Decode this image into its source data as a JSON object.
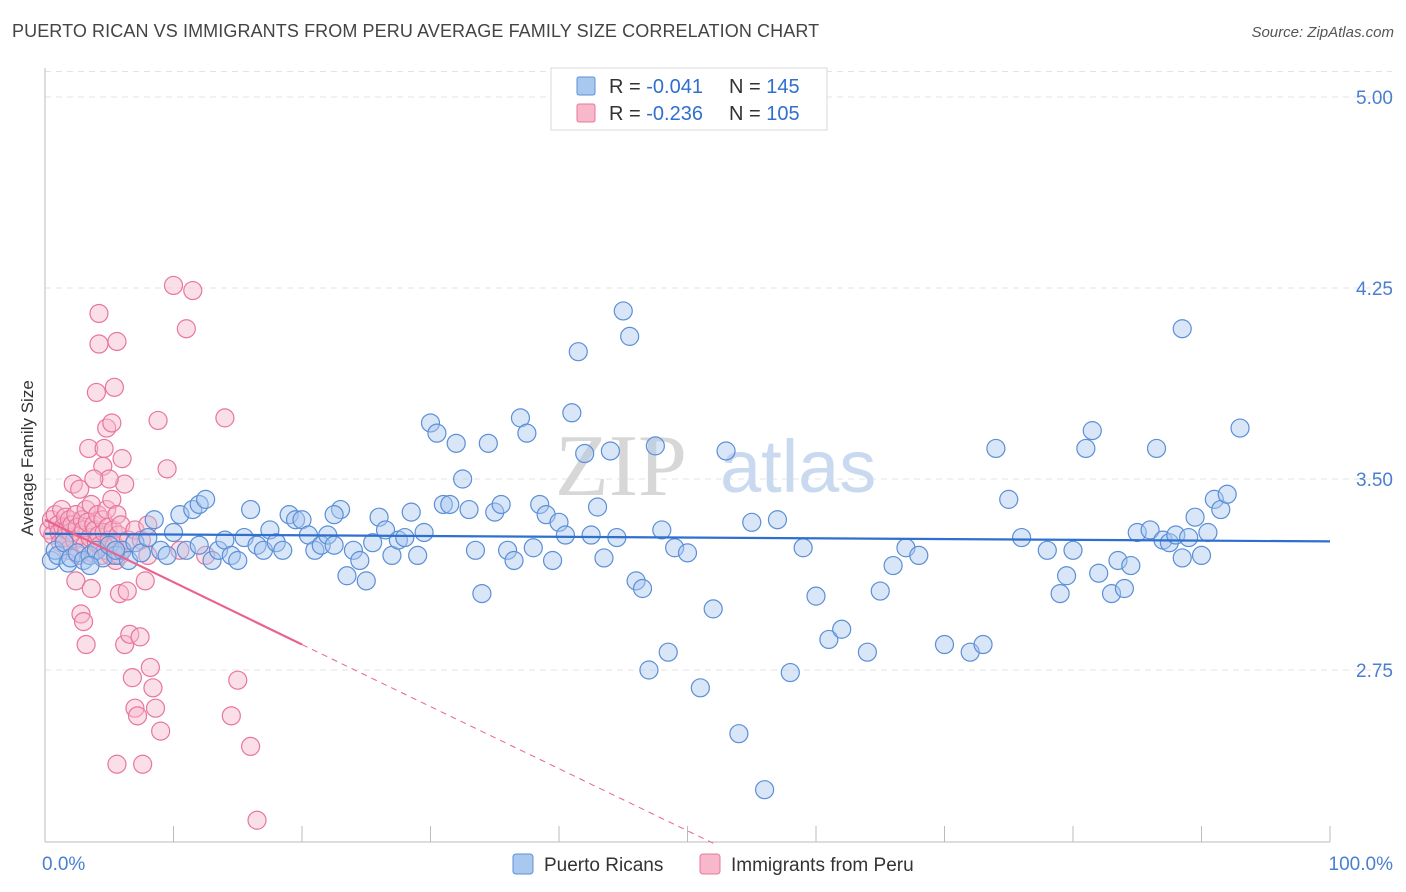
{
  "title": "PUERTO RICAN VS IMMIGRANTS FROM PERU AVERAGE FAMILY SIZE CORRELATION CHART",
  "source": "Source: ZipAtlas.com",
  "watermark": {
    "zip": "ZIP",
    "atlas": "atlas"
  },
  "colors": {
    "blue_fill": "#a9c8f0",
    "blue_stroke": "#5b8fd6",
    "blue_line": "#2f6fcf",
    "pink_fill": "#f7b8cb",
    "pink_stroke": "#e8769c",
    "pink_line": "#e8638f",
    "tick": "#4a7fd0",
    "grid": "#e3e3e3"
  },
  "legend_box": {
    "rows": [
      {
        "r_label": "R = ",
        "r_value": "-0.041",
        "n_label": "N = ",
        "n_value": "145"
      },
      {
        "r_label": "R = ",
        "r_value": "-0.236",
        "n_label": "N = ",
        "n_value": "105"
      }
    ]
  },
  "chart_data": {
    "type": "scatter",
    "title": "PUERTO RICAN VS IMMIGRANTS FROM PERU AVERAGE FAMILY SIZE CORRELATION CHART",
    "xlabel": "",
    "ylabel": "Average Family Size",
    "xlim": [
      0,
      100
    ],
    "ylim": [
      2.0,
      5.1
    ],
    "x_tick_labels": [
      "0.0%",
      "100.0%"
    ],
    "y_ticks": [
      2.75,
      3.5,
      4.25,
      5.0
    ],
    "y_tick_labels": [
      "2.75",
      "3.50",
      "4.25",
      "5.00"
    ],
    "grid": true,
    "legend_position": "bottom-center",
    "series": [
      {
        "name": "Puerto Ricans",
        "r": -0.041,
        "n": 145,
        "trend": {
          "x": [
            0,
            100
          ],
          "y": [
            3.285,
            3.255
          ]
        },
        "points": [
          [
            0.5,
            3.18
          ],
          [
            0.8,
            3.22
          ],
          [
            1.0,
            3.2
          ],
          [
            1.5,
            3.25
          ],
          [
            1.8,
            3.17
          ],
          [
            2.0,
            3.19
          ],
          [
            2.5,
            3.21
          ],
          [
            3.0,
            3.18
          ],
          [
            3.5,
            3.2
          ],
          [
            4.0,
            3.22
          ],
          [
            4.5,
            3.19
          ],
          [
            5.0,
            3.24
          ],
          [
            5.5,
            3.2
          ],
          [
            6.0,
            3.22
          ],
          [
            6.5,
            3.18
          ],
          [
            7.0,
            3.25
          ],
          [
            7.5,
            3.21
          ],
          [
            8.0,
            3.27
          ],
          [
            8.5,
            3.34
          ],
          [
            9.0,
            3.22
          ],
          [
            9.5,
            3.2
          ],
          [
            10.0,
            3.29
          ],
          [
            10.5,
            3.36
          ],
          [
            11.0,
            3.22
          ],
          [
            11.5,
            3.38
          ],
          [
            12.0,
            3.4
          ],
          [
            12.5,
            3.42
          ],
          [
            13.0,
            3.18
          ],
          [
            13.5,
            3.22
          ],
          [
            14.0,
            3.26
          ],
          [
            14.5,
            3.2
          ],
          [
            15.0,
            3.18
          ],
          [
            15.5,
            3.27
          ],
          [
            16.0,
            3.38
          ],
          [
            16.5,
            3.24
          ],
          [
            17.0,
            3.22
          ],
          [
            17.5,
            3.3
          ],
          [
            18.0,
            3.25
          ],
          [
            18.5,
            3.22
          ],
          [
            19.0,
            3.36
          ],
          [
            19.5,
            3.34
          ],
          [
            20.0,
            3.34
          ],
          [
            20.5,
            3.28
          ],
          [
            21.0,
            3.22
          ],
          [
            21.5,
            3.24
          ],
          [
            22.0,
            3.28
          ],
          [
            22.5,
            3.24
          ],
          [
            23.0,
            3.38
          ],
          [
            23.5,
            3.12
          ],
          [
            24.0,
            3.22
          ],
          [
            24.5,
            3.18
          ],
          [
            25.0,
            3.1
          ],
          [
            25.5,
            3.25
          ],
          [
            26.0,
            3.35
          ],
          [
            26.5,
            3.3
          ],
          [
            27.0,
            3.2
          ],
          [
            27.5,
            3.26
          ],
          [
            28.0,
            3.27
          ],
          [
            28.5,
            3.37
          ],
          [
            29.0,
            3.2
          ],
          [
            29.5,
            3.29
          ],
          [
            30.0,
            3.72
          ],
          [
            30.5,
            3.68
          ],
          [
            31.0,
            3.4
          ],
          [
            31.5,
            3.4
          ],
          [
            32.0,
            3.64
          ],
          [
            32.5,
            3.5
          ],
          [
            33.0,
            3.38
          ],
          [
            33.5,
            3.22
          ],
          [
            34.0,
            3.05
          ],
          [
            34.5,
            3.64
          ],
          [
            35.0,
            3.37
          ],
          [
            35.5,
            3.4
          ],
          [
            36.0,
            3.22
          ],
          [
            36.5,
            3.18
          ],
          [
            37.0,
            3.74
          ],
          [
            37.5,
            3.68
          ],
          [
            38.0,
            3.23
          ],
          [
            38.5,
            3.4
          ],
          [
            39.0,
            3.36
          ],
          [
            39.5,
            3.18
          ],
          [
            40.0,
            3.33
          ],
          [
            40.5,
            3.28
          ],
          [
            41.0,
            3.76
          ],
          [
            41.5,
            4.0
          ],
          [
            42.0,
            3.6
          ],
          [
            42.5,
            3.28
          ],
          [
            43.0,
            3.39
          ],
          [
            43.5,
            3.19
          ],
          [
            44.0,
            3.61
          ],
          [
            44.5,
            3.27
          ],
          [
            45.0,
            4.16
          ],
          [
            45.5,
            4.06
          ],
          [
            46.0,
            3.1
          ],
          [
            46.5,
            3.07
          ],
          [
            47.0,
            2.75
          ],
          [
            47.5,
            3.63
          ],
          [
            48.0,
            3.3
          ],
          [
            48.5,
            2.82
          ],
          [
            49.0,
            3.23
          ],
          [
            50.0,
            3.21
          ],
          [
            51.0,
            2.68
          ],
          [
            52.0,
            2.99
          ],
          [
            53.0,
            3.61
          ],
          [
            54.0,
            2.5
          ],
          [
            55.0,
            3.33
          ],
          [
            56.0,
            2.28
          ],
          [
            57.0,
            3.34
          ],
          [
            58.0,
            2.74
          ],
          [
            59.0,
            3.23
          ],
          [
            60.0,
            3.04
          ],
          [
            61.0,
            2.87
          ],
          [
            62.0,
            2.91
          ],
          [
            64.0,
            2.82
          ],
          [
            65.0,
            3.06
          ],
          [
            66.0,
            3.16
          ],
          [
            67.0,
            3.23
          ],
          [
            68.0,
            3.2
          ],
          [
            70.0,
            2.85
          ],
          [
            72.0,
            2.82
          ],
          [
            73.0,
            2.85
          ],
          [
            74.0,
            3.62
          ],
          [
            75.0,
            3.42
          ],
          [
            76.0,
            3.27
          ],
          [
            78.0,
            3.22
          ],
          [
            79.0,
            3.05
          ],
          [
            79.5,
            3.12
          ],
          [
            80.0,
            3.22
          ],
          [
            81.0,
            3.62
          ],
          [
            81.5,
            3.69
          ],
          [
            82.0,
            3.13
          ],
          [
            83.0,
            3.05
          ],
          [
            83.5,
            3.18
          ],
          [
            84.0,
            3.07
          ],
          [
            84.5,
            3.16
          ],
          [
            85.0,
            3.29
          ],
          [
            86.0,
            3.3
          ],
          [
            86.5,
            3.62
          ],
          [
            87.0,
            3.26
          ],
          [
            87.5,
            3.25
          ],
          [
            88.0,
            3.28
          ],
          [
            88.5,
            3.19
          ],
          [
            89.0,
            3.27
          ],
          [
            89.5,
            3.35
          ],
          [
            90.0,
            3.2
          ],
          [
            90.5,
            3.29
          ],
          [
            91.0,
            3.42
          ],
          [
            91.5,
            3.38
          ],
          [
            92.0,
            3.44
          ],
          [
            93.0,
            3.7
          ],
          [
            3.5,
            3.16
          ],
          [
            5.5,
            3.22
          ],
          [
            12.0,
            3.24
          ],
          [
            22.5,
            3.36
          ],
          [
            88.5,
            4.09
          ]
        ]
      },
      {
        "name": "Immigrants from Peru",
        "r": -0.236,
        "n": 105,
        "trend": {
          "x": [
            0,
            20
          ],
          "y": [
            3.34,
            2.85
          ]
        },
        "trend_dashed": {
          "x": [
            20,
            52
          ],
          "y": [
            2.85,
            2.07
          ]
        },
        "points": [
          [
            0.3,
            3.3
          ],
          [
            0.5,
            3.34
          ],
          [
            0.6,
            3.28
          ],
          [
            0.8,
            3.36
          ],
          [
            1.0,
            3.32
          ],
          [
            1.1,
            3.29
          ],
          [
            1.2,
            3.25
          ],
          [
            1.3,
            3.38
          ],
          [
            1.4,
            3.31
          ],
          [
            1.5,
            3.27
          ],
          [
            1.6,
            3.35
          ],
          [
            1.7,
            3.3
          ],
          [
            1.8,
            3.22
          ],
          [
            1.9,
            3.34
          ],
          [
            2.0,
            3.29
          ],
          [
            2.1,
            3.32
          ],
          [
            2.2,
            3.48
          ],
          [
            2.3,
            3.26
          ],
          [
            2.4,
            3.36
          ],
          [
            2.5,
            3.31
          ],
          [
            2.6,
            3.2
          ],
          [
            2.7,
            3.46
          ],
          [
            2.8,
            3.28
          ],
          [
            2.9,
            3.34
          ],
          [
            3.0,
            3.3
          ],
          [
            3.1,
            3.24
          ],
          [
            3.2,
            3.38
          ],
          [
            3.3,
            3.33
          ],
          [
            3.4,
            3.62
          ],
          [
            3.5,
            3.27
          ],
          [
            3.6,
            3.4
          ],
          [
            3.7,
            3.21
          ],
          [
            3.8,
            3.32
          ],
          [
            3.9,
            3.3
          ],
          [
            4.0,
            3.25
          ],
          [
            4.1,
            3.36
          ],
          [
            4.2,
            3.28
          ],
          [
            4.3,
            3.24
          ],
          [
            4.4,
            3.2
          ],
          [
            4.5,
            3.34
          ],
          [
            4.6,
            3.29
          ],
          [
            4.7,
            3.22
          ],
          [
            4.8,
            3.38
          ],
          [
            4.9,
            3.31
          ],
          [
            5.0,
            3.26
          ],
          [
            5.1,
            3.2
          ],
          [
            5.2,
            3.42
          ],
          [
            5.3,
            3.3
          ],
          [
            5.4,
            3.24
          ],
          [
            5.5,
            3.18
          ],
          [
            5.6,
            3.36
          ],
          [
            5.7,
            3.28
          ],
          [
            5.8,
            3.2
          ],
          [
            5.9,
            3.32
          ],
          [
            6.0,
            3.22
          ],
          [
            6.2,
            3.48
          ],
          [
            6.5,
            3.26
          ],
          [
            7.0,
            3.3
          ],
          [
            7.5,
            3.26
          ],
          [
            8.0,
            3.2
          ],
          [
            2.4,
            3.1
          ],
          [
            2.8,
            2.97
          ],
          [
            3.0,
            2.94
          ],
          [
            3.2,
            2.85
          ],
          [
            3.6,
            3.07
          ],
          [
            4.0,
            3.84
          ],
          [
            4.2,
            4.15
          ],
          [
            4.5,
            3.55
          ],
          [
            4.8,
            3.7
          ],
          [
            5.0,
            3.5
          ],
          [
            5.2,
            3.72
          ],
          [
            5.4,
            3.86
          ],
          [
            5.6,
            4.04
          ],
          [
            5.8,
            3.05
          ],
          [
            6.0,
            3.58
          ],
          [
            6.2,
            2.85
          ],
          [
            6.4,
            3.06
          ],
          [
            6.6,
            2.89
          ],
          [
            6.8,
            2.72
          ],
          [
            7.0,
            2.6
          ],
          [
            7.2,
            2.57
          ],
          [
            7.4,
            2.88
          ],
          [
            7.6,
            2.38
          ],
          [
            7.8,
            3.1
          ],
          [
            8.0,
            3.32
          ],
          [
            8.2,
            2.76
          ],
          [
            8.4,
            2.68
          ],
          [
            8.6,
            2.6
          ],
          [
            8.8,
            3.73
          ],
          [
            9.0,
            2.51
          ],
          [
            9.5,
            3.54
          ],
          [
            10.0,
            4.26
          ],
          [
            10.5,
            3.22
          ],
          [
            11.0,
            4.09
          ],
          [
            11.5,
            4.24
          ],
          [
            12.5,
            3.2
          ],
          [
            14.0,
            3.74
          ],
          [
            14.5,
            2.57
          ],
          [
            15.0,
            2.71
          ],
          [
            16.0,
            2.45
          ],
          [
            16.5,
            2.16
          ],
          [
            5.6,
            2.38
          ],
          [
            4.6,
            3.62
          ],
          [
            4.2,
            4.03
          ],
          [
            3.8,
            3.5
          ]
        ]
      }
    ]
  },
  "bottom_legend": [
    "Puerto Ricans",
    "Immigrants from Peru"
  ]
}
